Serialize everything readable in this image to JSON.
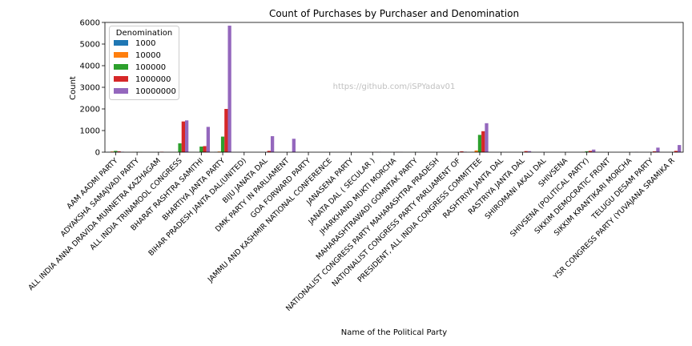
{
  "chart_data": {
    "type": "bar",
    "title": "Count of Purchases by Purchaser and Denomination",
    "xlabel": "Name of the Political Party",
    "ylabel": "Count",
    "ylim": [
      0,
      6000
    ],
    "yticks": [
      0,
      1000,
      2000,
      3000,
      4000,
      5000,
      6000
    ],
    "grid": false,
    "legend": {
      "title": "Denomination",
      "placement": "top-left"
    },
    "watermark": "https://github.com/iSPYadav01",
    "categories": [
      "AAM AADMI PARTY",
      "ADYAKSHA SAMAJVADI PARTY",
      "ALL INDIA ANNA DRAVIDA MUNNETRA KAZHAGAM",
      "ALL INDIA TRINAMOOL CONGRESS",
      "BHARAT RASHTRA SAMITHI",
      "BHARTIYA JANTA PARTY",
      "BIHAR PRADESH JANTA DAL(UNITED)",
      "BIJU JANATA DAL",
      "DMK PARTY IN PARLIAMENT",
      "GOA FORWARD PARTY",
      "JAMMU AND KASHMIR NATIONAL CONFERENCE",
      "JANASENA PARTY",
      "JANATA DAL ( SECULAR )",
      "JHARKHAND MUKTI MORCHA",
      "MAHARASHTRAWADI GOMNTAK PARTY",
      "NATIONALIST CONGRESS PARTY MAHARASHTRA PRADESH",
      "NATIONALIST CONGRESS PARTY PARLIAMENT OF",
      "PRESIDENT, ALL INDIA CONGRESS COMMITTEE",
      "RASHTRIYA JANTA DAL",
      "RASTRIYA JANTA DAL",
      "SHIROMANI AKALI DAL",
      "SHIVSENA",
      "SHIVSENA (POLITICAL PARTY)",
      "SIKKIM DEMOCRATIC FRONT",
      "SIKKIM KRANTIKARI MORCHA",
      "TELUGU DESAM PARTY",
      "YSR CONGRESS PARTY (YUVAJANA SRAMIKA R"
    ],
    "series": [
      {
        "name": "1000",
        "color": "#1f77b4",
        "values": [
          10,
          0,
          0,
          0,
          0,
          10,
          0,
          0,
          0,
          0,
          0,
          0,
          0,
          0,
          0,
          0,
          0,
          5,
          0,
          0,
          0,
          0,
          0,
          0,
          0,
          0,
          0
        ]
      },
      {
        "name": "10000",
        "color": "#ff7f0e",
        "values": [
          30,
          5,
          0,
          5,
          0,
          30,
          0,
          0,
          0,
          0,
          0,
          0,
          0,
          0,
          0,
          0,
          0,
          80,
          0,
          0,
          0,
          0,
          10,
          0,
          0,
          0,
          0
        ]
      },
      {
        "name": "100000",
        "color": "#2ca02c",
        "values": [
          60,
          10,
          5,
          410,
          260,
          720,
          0,
          0,
          0,
          0,
          0,
          0,
          0,
          0,
          10,
          0,
          0,
          800,
          0,
          0,
          0,
          0,
          40,
          0,
          0,
          0,
          5
        ]
      },
      {
        "name": "1000000",
        "color": "#d62728",
        "values": [
          40,
          5,
          20,
          1420,
          280,
          2000,
          0,
          60,
          0,
          0,
          0,
          0,
          10,
          10,
          0,
          0,
          40,
          970,
          0,
          50,
          0,
          0,
          60,
          0,
          0,
          40,
          60
        ]
      },
      {
        "name": "10000000",
        "color": "#9467bd",
        "values": [
          20,
          0,
          0,
          1470,
          1170,
          5850,
          0,
          740,
          620,
          0,
          0,
          0,
          10,
          10,
          0,
          0,
          20,
          1340,
          0,
          50,
          0,
          0,
          120,
          0,
          10,
          210,
          330
        ]
      }
    ]
  }
}
